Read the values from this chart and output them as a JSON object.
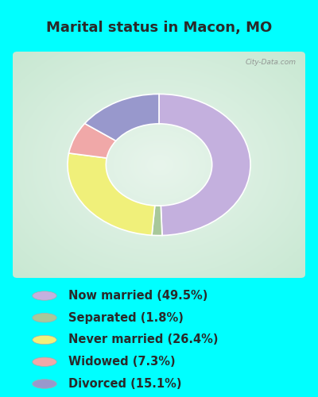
{
  "title": "Marital status in Macon, MO",
  "title_color": "#2a2a2a",
  "title_fontsize": 13,
  "slices": [
    {
      "label": "Now married (49.5%)",
      "value": 49.5,
      "color": "#c4b0de"
    },
    {
      "label": "Separated (1.8%)",
      "value": 1.8,
      "color": "#a8c89a"
    },
    {
      "label": "Never married (26.4%)",
      "value": 26.4,
      "color": "#f0f07a"
    },
    {
      "label": "Widowed (7.3%)",
      "value": 7.3,
      "color": "#f0a8a8"
    },
    {
      "label": "Divorced (15.1%)",
      "value": 15.1,
      "color": "#9898cc"
    }
  ],
  "donut_outer_r": 1.0,
  "donut_width": 0.42,
  "startangle": 90,
  "watermark": "City-Data.com",
  "fig_bg": "#00FFFF",
  "chart_box_color_center": "#e8f5ec",
  "chart_box_color_edge": "#c8e8d4",
  "legend_circle_r": 0.038,
  "legend_fontsize": 10.5
}
